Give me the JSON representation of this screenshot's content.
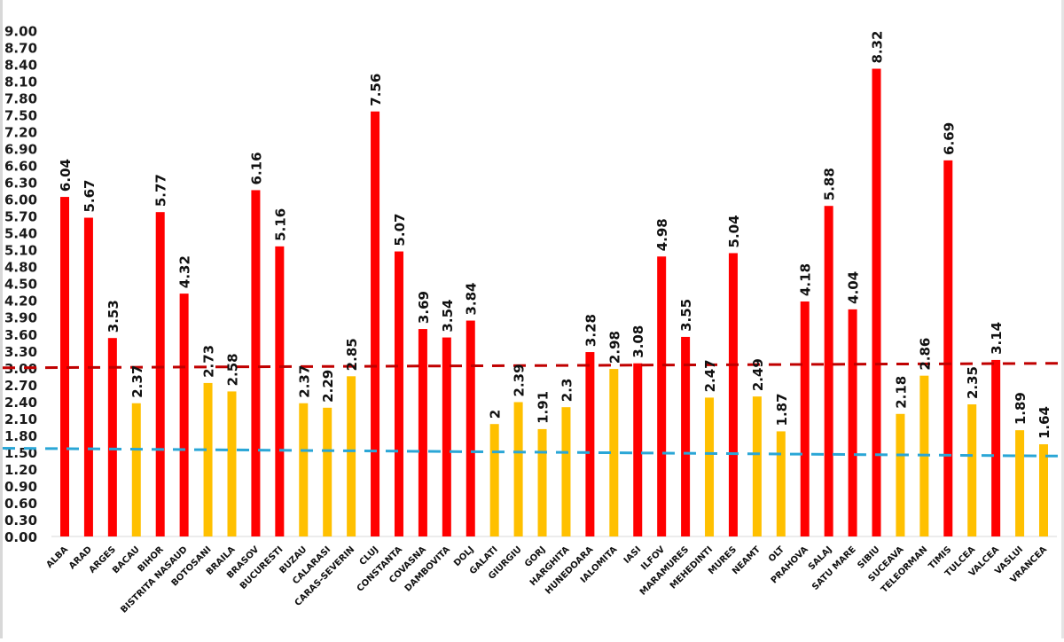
{
  "chart_data": {
    "type": "bar",
    "title": "",
    "xlabel": "",
    "ylabel": "",
    "ylim": [
      0,
      9
    ],
    "yticks": [
      "0.00",
      "0.30",
      "0.60",
      "0.90",
      "1.20",
      "1.50",
      "1.80",
      "2.10",
      "2.40",
      "2.70",
      "3.00",
      "3.30",
      "3.60",
      "3.90",
      "4.20",
      "4.50",
      "4.80",
      "5.10",
      "5.40",
      "5.70",
      "6.00",
      "6.30",
      "6.60",
      "6.90",
      "7.20",
      "7.50",
      "7.80",
      "8.10",
      "8.40",
      "8.70",
      "9.00"
    ],
    "grid": false,
    "legend": "none",
    "categories": [
      "ALBA",
      "ARAD",
      "ARGES",
      "BACAU",
      "BIHOR",
      "BISTRITA NASAUD",
      "BOTOSANI",
      "BRAILA",
      "BRASOV",
      "BUCURESTI",
      "BUZAU",
      "CALARASI",
      "CARAS-SEVERIN",
      "CLUJ",
      "CONSTANTA",
      "COVASNA",
      "DAMBOVITA",
      "DOLJ",
      "GALATI",
      "GIURGIU",
      "GORJ",
      "HARGHITA",
      "HUNEDOARA",
      "IALOMITA",
      "IASI",
      "ILFOV",
      "MARAMURES",
      "MEHEDINTI",
      "MURES",
      "NEAMT",
      "OLT",
      "PRAHOVA",
      "SALAJ",
      "SATU MARE",
      "SIBIU",
      "SUCEAVA",
      "TELEORMAN",
      "TIMIS",
      "TULCEA",
      "VALCEA",
      "VASLUI",
      "VRANCEA"
    ],
    "values": [
      6.04,
      5.67,
      3.53,
      2.37,
      5.77,
      4.32,
      2.73,
      2.58,
      6.16,
      5.16,
      2.37,
      2.29,
      2.85,
      7.56,
      5.07,
      3.69,
      3.54,
      3.84,
      2,
      2.39,
      1.91,
      2.3,
      3.28,
      2.98,
      3.08,
      4.98,
      3.55,
      2.47,
      5.04,
      2.49,
      1.87,
      4.18,
      5.88,
      4.04,
      8.32,
      2.18,
      2.86,
      6.69,
      2.35,
      3.14,
      1.89,
      1.64
    ],
    "data_labels": [
      "6.04",
      "5.67",
      "3.53",
      "2.37",
      "5.77",
      "4.32",
      "2.73",
      "2.58",
      "6.16",
      "5.16",
      "2.37",
      "2.29",
      "2.85",
      "7.56",
      "5.07",
      "3.69",
      "3.54",
      "3.84",
      "2",
      "2.39",
      "1.91",
      "2.3",
      "3.28",
      "2.98",
      "3.08",
      "4.98",
      "3.55",
      "2.47",
      "5.04",
      "2.49",
      "1.87",
      "4.18",
      "5.88",
      "4.04",
      "8.32",
      "2.18",
      "2.86",
      "6.69",
      "2.35",
      "3.14",
      "1.89",
      "1.64"
    ],
    "color_rule": {
      "threshold": 3.0,
      "above_color": "#ff0000",
      "below_color": "#ffc000"
    },
    "reference_lines": [
      {
        "name": "red-threshold",
        "color": "#c00000",
        "style": "dashed",
        "y_start": 3.0,
        "y_end": 3.08
      },
      {
        "name": "blue-threshold",
        "color": "#2aa6d6",
        "style": "dashed",
        "y_start": 1.57,
        "y_end": 1.43
      }
    ]
  }
}
